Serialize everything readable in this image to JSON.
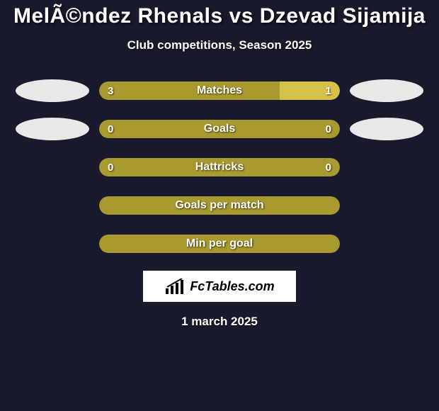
{
  "title": "MelÃ©ndez Rhenals vs Dzevad Sijamija",
  "subtitle": "Club competitions, Season 2025",
  "colors": {
    "background": "#1a1a2e",
    "primary_bar": "#a89a2f",
    "secondary_bar": "#d4c24a",
    "ellipse": "#e8e8e8",
    "text": "#ffffff"
  },
  "rows": [
    {
      "label": "Matches",
      "left_value": "3",
      "right_value": "1",
      "left_pct": 75,
      "right_pct": 25,
      "left_color": "#a89a2f",
      "right_color": "#d4c24a",
      "show_ellipses": true,
      "show_values": true
    },
    {
      "label": "Goals",
      "left_value": "0",
      "right_value": "0",
      "left_pct": 50,
      "right_pct": 50,
      "left_color": "#a89a2f",
      "right_color": "#a89a2f",
      "show_ellipses": true,
      "show_values": true
    },
    {
      "label": "Hattricks",
      "left_value": "0",
      "right_value": "0",
      "left_pct": 50,
      "right_pct": 50,
      "left_color": "#a89a2f",
      "right_color": "#a89a2f",
      "show_ellipses": false,
      "show_values": true
    },
    {
      "label": "Goals per match",
      "left_value": "",
      "right_value": "",
      "left_pct": 100,
      "right_pct": 0,
      "left_color": "#a89a2f",
      "right_color": "#a89a2f",
      "show_ellipses": false,
      "show_values": false
    },
    {
      "label": "Min per goal",
      "left_value": "",
      "right_value": "",
      "left_pct": 100,
      "right_pct": 0,
      "left_color": "#a89a2f",
      "right_color": "#a89a2f",
      "show_ellipses": false,
      "show_values": false
    }
  ],
  "logo_text": "FcTables.com",
  "date": "1 march 2025"
}
